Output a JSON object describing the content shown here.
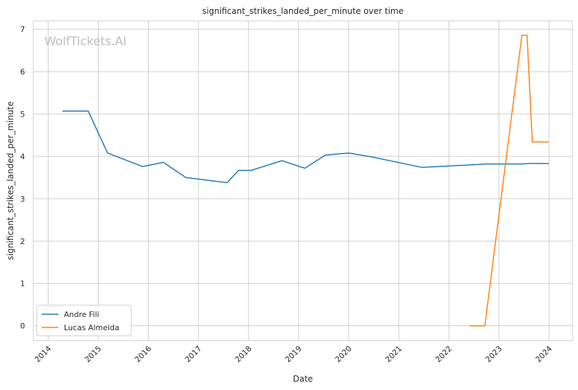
{
  "chart_data": {
    "type": "line",
    "title": "significant_strikes_landed_per_minute over time",
    "xlabel": "Date",
    "ylabel": "significant_strikes_landed_per_minute",
    "watermark": "WolfTickets.AI",
    "x_ticks": [
      "2014",
      "2015",
      "2016",
      "2017",
      "2018",
      "2019",
      "2020",
      "2021",
      "2022",
      "2023",
      "2024"
    ],
    "y_ticks": [
      "0",
      "1",
      "2",
      "3",
      "4",
      "5",
      "6",
      "7"
    ],
    "xlim": [
      "2013-09-15",
      "2024-06-20"
    ],
    "ylim": [
      -0.35,
      7.2
    ],
    "grid": true,
    "legend": "lower-left",
    "series": [
      {
        "name": "Andre Fili",
        "color": "#1f77b4",
        "points": [
          [
            "2014-04-15",
            5.07
          ],
          [
            "2014-10-20",
            5.07
          ],
          [
            "2015-03-10",
            4.08
          ],
          [
            "2015-11-20",
            3.76
          ],
          [
            "2016-04-20",
            3.86
          ],
          [
            "2016-10-01",
            3.5
          ],
          [
            "2017-07-29",
            3.38
          ],
          [
            "2017-10-20",
            3.67
          ],
          [
            "2018-01-20",
            3.67
          ],
          [
            "2018-09-01",
            3.9
          ],
          [
            "2019-02-15",
            3.72
          ],
          [
            "2019-07-15",
            4.03
          ],
          [
            "2020-01-01",
            4.08
          ],
          [
            "2020-06-15",
            3.99
          ],
          [
            "2021-06-20",
            3.74
          ],
          [
            "2022-06-01",
            3.8
          ],
          [
            "2022-10-01",
            3.82
          ],
          [
            "2023-01-01",
            3.82
          ],
          [
            "2023-06-15",
            3.82
          ],
          [
            "2023-08-01",
            3.83
          ],
          [
            "2023-12-30",
            3.83
          ]
        ]
      },
      {
        "name": "Lucas Almeida",
        "color": "#ff7f0e",
        "points": [
          [
            "2022-06-01",
            0.0
          ],
          [
            "2022-09-20",
            0.0
          ],
          [
            "2023-06-17",
            6.86
          ],
          [
            "2023-07-25",
            6.86
          ],
          [
            "2023-09-01",
            4.34
          ],
          [
            "2023-12-31",
            4.34
          ]
        ]
      }
    ]
  }
}
